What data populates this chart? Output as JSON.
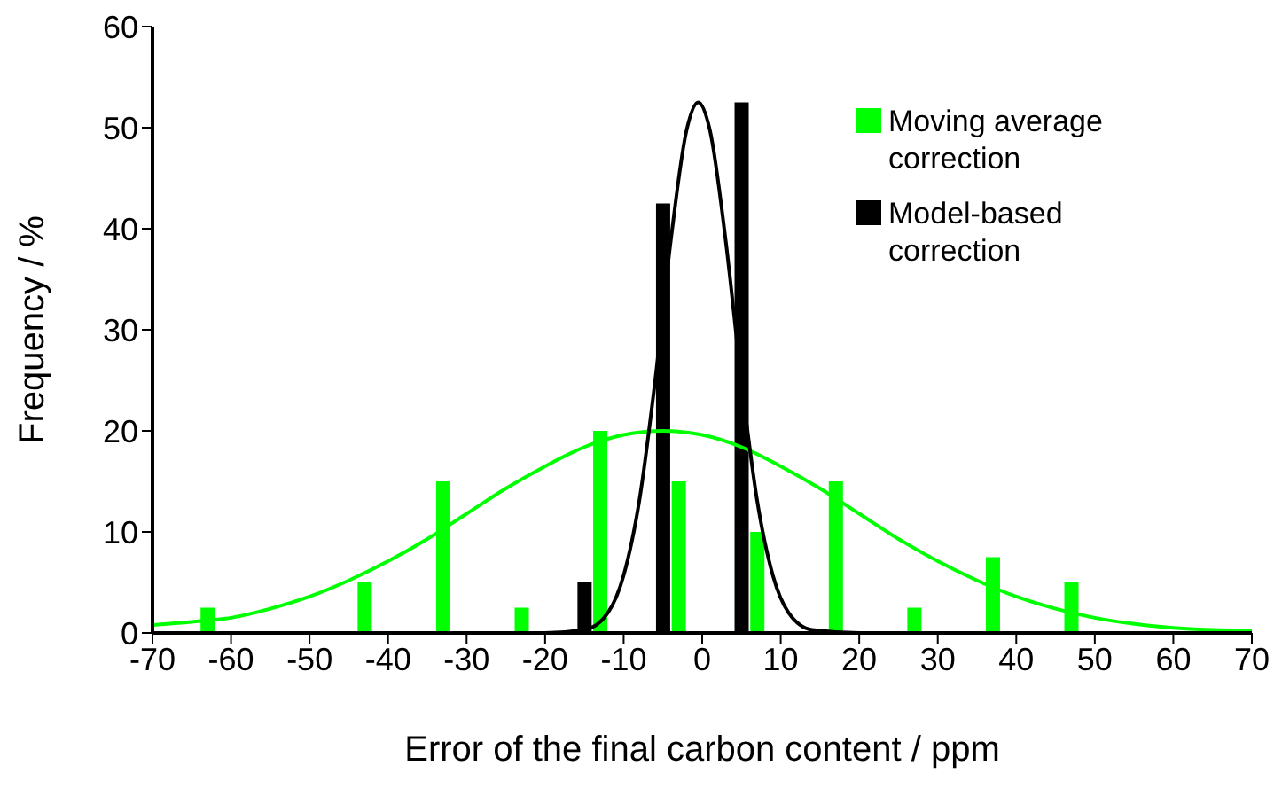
{
  "chart_data": {
    "type": "bar",
    "xlabel": "Error of the final carbon content / ppm",
    "ylabel": "Frequency / %",
    "xlim": [
      -70,
      70
    ],
    "xticks": [
      -70,
      -60,
      -50,
      -40,
      -30,
      -20,
      -10,
      0,
      10,
      20,
      30,
      40,
      50,
      60,
      70
    ],
    "ylim": [
      0,
      60
    ],
    "yticks": [
      0,
      10,
      20,
      30,
      40,
      50,
      60
    ],
    "legend": "top right",
    "series": [
      {
        "name": "Moving average correction",
        "color": "#00ff00",
        "x": [
          -63,
          -43,
          -33,
          -23,
          -13,
          -3,
          7,
          17,
          27,
          37,
          47
        ],
        "values": [
          2.5,
          5,
          15,
          2.5,
          20,
          15,
          10,
          15,
          2.5,
          7.5,
          5
        ]
      },
      {
        "name": "Model-based correction",
        "color": "#000000",
        "x": [
          -15,
          -5,
          5
        ],
        "values": [
          5,
          42.5,
          52.5
        ]
      },
      {
        "color": "#00ff00",
        "type": "line",
        "x": [
          -70,
          -65,
          -60,
          -55,
          -50,
          -45,
          -40,
          -35,
          -30,
          -25,
          -20,
          -15,
          -10,
          -5,
          0,
          5,
          10,
          15,
          20,
          25,
          30,
          35,
          40,
          45,
          50,
          55,
          60,
          65,
          70
        ],
        "values": [
          0.8,
          1.1,
          1.5,
          2.4,
          3.6,
          5.2,
          7.1,
          9.3,
          11.8,
          14.3,
          16.5,
          18.4,
          19.6,
          20,
          19.6,
          18.4,
          16.5,
          14.3,
          11.8,
          9.3,
          7.1,
          5.2,
          3.6,
          2.4,
          1.5,
          0.9,
          0.5,
          0.3,
          0.2
        ]
      },
      {
        "color": "#000000",
        "type": "line",
        "x": [
          -70,
          -20,
          -15,
          -12,
          -10,
          -8,
          -6,
          -4,
          -2,
          -0.5,
          1,
          3,
          5,
          7,
          9,
          11,
          14,
          20,
          70
        ],
        "values": [
          0,
          0,
          0.3,
          2,
          5.7,
          13.1,
          24.9,
          38.8,
          49.7,
          52.5,
          49.7,
          38.8,
          24.9,
          13.1,
          5.7,
          2,
          0.3,
          0,
          0
        ]
      }
    ]
  }
}
